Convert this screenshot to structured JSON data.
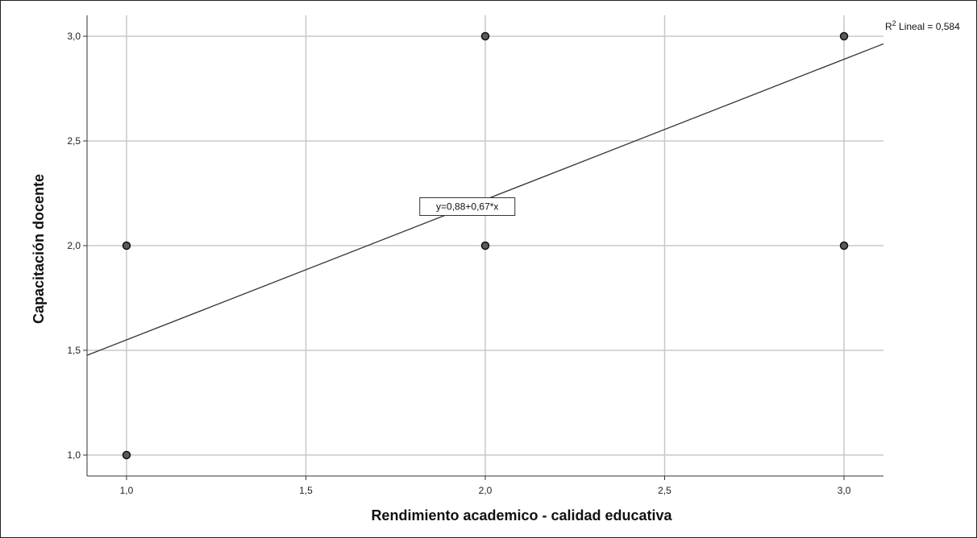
{
  "chart_data": {
    "type": "scatter",
    "title": "",
    "xlabel": "Rendimiento academico - calidad educativa",
    "ylabel": "Capacitación docente",
    "xlim": [
      0.89,
      3.11
    ],
    "ylim": [
      0.9,
      3.1
    ],
    "x_ticks": [
      1.0,
      1.5,
      2.0,
      2.5,
      3.0
    ],
    "x_tick_labels": [
      "1,0",
      "1,5",
      "2,0",
      "2,5",
      "3,0"
    ],
    "y_ticks": [
      1.0,
      1.5,
      2.0,
      2.5,
      3.0
    ],
    "y_tick_labels": [
      "1,0",
      "1,5",
      "2,0",
      "2,5",
      "3,0"
    ],
    "grid": true,
    "points": [
      {
        "x": 1,
        "y": 1
      },
      {
        "x": 1,
        "y": 2
      },
      {
        "x": 2,
        "y": 2
      },
      {
        "x": 2,
        "y": 3
      },
      {
        "x": 3,
        "y": 2
      },
      {
        "x": 3,
        "y": 3
      }
    ],
    "fit_line": {
      "intercept": 0.88,
      "slope": 0.67,
      "equation_label": "y=0,88+0,67*x"
    },
    "r2_label": {
      "prefix": "R",
      "superscript": "2",
      "text": " Lineal = 0,584"
    },
    "colors": {
      "point_fill": "#5a5a5a",
      "point_stroke": "#111111",
      "grid": "#c8c8c8",
      "line": "#333333"
    }
  }
}
